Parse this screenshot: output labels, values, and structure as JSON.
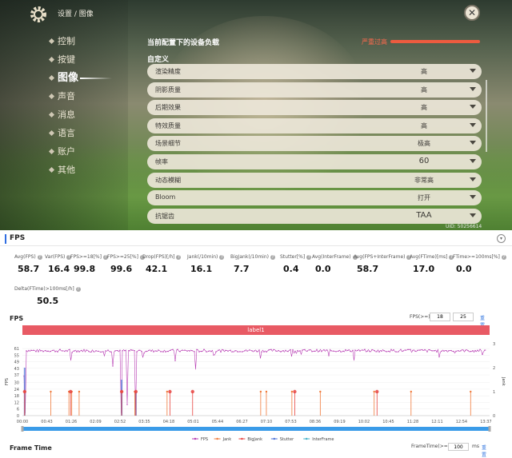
{
  "game": {
    "breadcrumb": "设置 / 图像",
    "close_icon": "✕",
    "nav": [
      {
        "label": "控制",
        "active": false
      },
      {
        "label": "按键",
        "active": false
      },
      {
        "label": "图像",
        "active": true
      },
      {
        "label": "声音",
        "active": false
      },
      {
        "label": "消息",
        "active": false
      },
      {
        "label": "语言",
        "active": false
      },
      {
        "label": "账户",
        "active": false
      },
      {
        "label": "其他",
        "active": false
      }
    ],
    "panel_title": "当前配置下的设备负载",
    "load_status": "严重过高",
    "section_title": "自定义",
    "settings": [
      {
        "label": "渲染精度",
        "value": "高"
      },
      {
        "label": "阴影质量",
        "value": "高"
      },
      {
        "label": "后期效果",
        "value": "高"
      },
      {
        "label": "特效质量",
        "value": "高"
      },
      {
        "label": "场景细节",
        "value": "极高"
      },
      {
        "label": "帧率",
        "value": "60"
      },
      {
        "label": "动态模糊",
        "value": "非常高"
      },
      {
        "label": "Bloom",
        "value": "打开"
      },
      {
        "label": "抗锯齿",
        "value": "TAA"
      }
    ],
    "uid": "UID: 50256614"
  },
  "perf": {
    "section_title": "FPS",
    "stats": [
      {
        "label": "Avg(FPS)",
        "value": "58.7"
      },
      {
        "label": "Var(FPS)",
        "value": "16.4"
      },
      {
        "label": "FPS>=18[%]",
        "value": "99.8"
      },
      {
        "label": "FPS>=25[%]",
        "value": "99.6"
      },
      {
        "label": "Drop(FPS)[/h]",
        "value": "42.1"
      },
      {
        "label": "Jank(/10min)",
        "value": "16.1"
      },
      {
        "label": "BigJank(/10min)",
        "value": "7.7"
      },
      {
        "label": "Stutter[%]",
        "value": "0.4"
      },
      {
        "label": "Avg(InterFrame)",
        "value": "0.0"
      },
      {
        "label": "Avg(FPS+InterFrame)",
        "value": "58.7"
      },
      {
        "label": "Avg(FTime)[ms]",
        "value": "17.0"
      },
      {
        "label": "FTime>=100ms[%]",
        "value": "0.0"
      },
      {
        "label": "Delta(FTime)>100ms[/h]",
        "value": "50.5"
      }
    ],
    "chart_title": "FPS",
    "fps_filter_label": "FPS(>=)",
    "fps_filter_values": [
      "18",
      "25"
    ],
    "reset_label": "重置",
    "label_bar": "label1",
    "frame_time_title": "Frame Time",
    "ft_filter_label": "FrameTime(>=)",
    "ft_filter_value": "100",
    "ft_unit": "ms"
  },
  "chart_data": {
    "type": "line",
    "title": "",
    "ylabel": "FPS",
    "y2label": "Jank",
    "y_ticks": [
      0,
      6,
      12,
      18,
      24,
      30,
      37,
      43,
      49,
      55,
      61
    ],
    "ylim": [
      0,
      61
    ],
    "y2_ticks": [
      0,
      1,
      2,
      3
    ],
    "y2lim": [
      0,
      3
    ],
    "x_ticks": [
      "00:00",
      "00:43",
      "01:26",
      "02:09",
      "02:52",
      "03:35",
      "04:18",
      "05:01",
      "05:44",
      "06:27",
      "07:10",
      "07:53",
      "08:36",
      "09:19",
      "10:02",
      "10:45",
      "11:28",
      "12:11",
      "12:54",
      "13:37"
    ],
    "fps_baseline": 59,
    "fps_dips": [
      {
        "t": "00:02",
        "value": 36
      },
      {
        "t": "00:04",
        "value": 2
      },
      {
        "t": "01:26",
        "value": 50
      },
      {
        "t": "02:40",
        "value": 45
      },
      {
        "t": "02:55",
        "value": 2
      },
      {
        "t": "03:05",
        "value": 10
      },
      {
        "t": "03:20",
        "value": 5
      },
      {
        "t": "04:30",
        "value": 50
      },
      {
        "t": "05:05",
        "value": 42
      },
      {
        "t": "07:00",
        "value": 52
      },
      {
        "t": "09:45",
        "value": 50
      }
    ],
    "jank_events": [
      {
        "t": "00:04",
        "value": 1
      },
      {
        "t": "00:50",
        "value": 1
      },
      {
        "t": "01:22",
        "value": 1
      },
      {
        "t": "01:27",
        "value": 1
      },
      {
        "t": "01:40",
        "value": 1
      },
      {
        "t": "02:55",
        "value": 1
      },
      {
        "t": "03:18",
        "value": 1
      },
      {
        "t": "04:15",
        "value": 1
      },
      {
        "t": "07:00",
        "value": 1
      },
      {
        "t": "07:10",
        "value": 1
      },
      {
        "t": "07:55",
        "value": 1
      },
      {
        "t": "08:45",
        "value": 1
      },
      {
        "t": "10:20",
        "value": 1
      },
      {
        "t": "11:25",
        "value": 1
      },
      {
        "t": "13:10",
        "value": 1
      }
    ],
    "bigjank_events": [
      {
        "t": "00:04",
        "value": 1
      },
      {
        "t": "01:25",
        "value": 1
      },
      {
        "t": "02:55",
        "value": 1
      },
      {
        "t": "03:20",
        "value": 1
      },
      {
        "t": "04:20",
        "value": 1
      },
      {
        "t": "05:00",
        "value": 1
      },
      {
        "t": "08:00",
        "value": 1
      },
      {
        "t": "10:25",
        "value": 1
      }
    ],
    "stutter_events": [
      {
        "t": "00:04",
        "value": 2
      },
      {
        "t": "02:55",
        "value": 1.5
      },
      {
        "t": "03:20",
        "value": 1
      }
    ],
    "legend": [
      "FPS",
      "Jank",
      "BigJank",
      "Stutter",
      "InterFrame"
    ],
    "legend_position": "bottom",
    "colors": {
      "FPS": "#b73bb3",
      "Jank": "#f07a3a",
      "BigJank": "#e8433f",
      "Stutter": "#4a6fd6",
      "InterFrame": "#3fb0c8"
    }
  }
}
